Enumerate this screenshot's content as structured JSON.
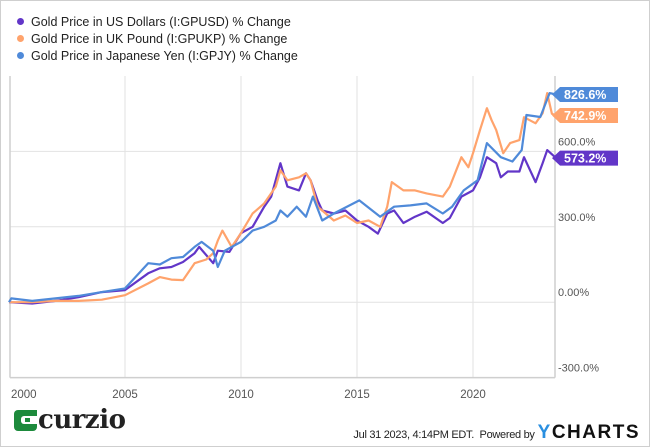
{
  "chart_data": {
    "type": "line",
    "title": "",
    "xlabel": "",
    "ylabel": "",
    "xlim": [
      2000,
      2023.6
    ],
    "ylim": [
      -300,
      900
    ],
    "grid": true,
    "legend": "top-left",
    "x_ticks": [
      "2000",
      "2005",
      "2010",
      "2015",
      "2020"
    ],
    "x_tick_values": [
      2000,
      2005,
      2010,
      2015,
      2020
    ],
    "y_ticks": [
      "-300.0%",
      "0.00%",
      "300.0%",
      "600.0%"
    ],
    "y_tick_values": [
      -300,
      0,
      300,
      600
    ],
    "series": [
      {
        "name": "Gold Price in US Dollars (I:GPUSD) % Change",
        "color": "#6236c8",
        "last_label": "573.2%",
        "last_value": 573.2,
        "points": [
          [
            2000,
            0
          ],
          [
            2001,
            -5
          ],
          [
            2002,
            5
          ],
          [
            2003,
            20
          ],
          [
            2004,
            40
          ],
          [
            2005,
            48
          ],
          [
            2006,
            115
          ],
          [
            2006.5,
            135
          ],
          [
            2007,
            140
          ],
          [
            2007.5,
            160
          ],
          [
            2008,
            195
          ],
          [
            2008.2,
            220
          ],
          [
            2008.8,
            155
          ],
          [
            2009,
            205
          ],
          [
            2009.5,
            200
          ],
          [
            2010,
            275
          ],
          [
            2010.5,
            300
          ],
          [
            2011,
            380
          ],
          [
            2011.3,
            420
          ],
          [
            2011.7,
            553
          ],
          [
            2012,
            460
          ],
          [
            2012.5,
            445
          ],
          [
            2012.8,
            513
          ],
          [
            2013,
            485
          ],
          [
            2013.3,
            405
          ],
          [
            2013.5,
            365
          ],
          [
            2014,
            353
          ],
          [
            2014.5,
            365
          ],
          [
            2015,
            325
          ],
          [
            2015.5,
            300
          ],
          [
            2015.9,
            273
          ],
          [
            2016.3,
            353
          ],
          [
            2016.6,
            365
          ],
          [
            2017,
            315
          ],
          [
            2017.5,
            340
          ],
          [
            2018,
            360
          ],
          [
            2018.7,
            315
          ],
          [
            2019,
            335
          ],
          [
            2019.5,
            420
          ],
          [
            2020,
            445
          ],
          [
            2020.3,
            497
          ],
          [
            2020.6,
            577
          ],
          [
            2021,
            553
          ],
          [
            2021.2,
            497
          ],
          [
            2021.5,
            520
          ],
          [
            2022,
            520
          ],
          [
            2022.2,
            577
          ],
          [
            2022.7,
            478
          ],
          [
            2023,
            553
          ],
          [
            2023.2,
            605
          ],
          [
            2023.58,
            573.2
          ]
        ]
      },
      {
        "name": "Gold Price in UK Pound (I:GPUKP) % Change",
        "color": "#ffa36c",
        "last_label": "742.9%",
        "last_value": 742.9,
        "points": [
          [
            2000,
            0
          ],
          [
            2001,
            0
          ],
          [
            2002,
            5
          ],
          [
            2003,
            5
          ],
          [
            2004,
            10
          ],
          [
            2005,
            28
          ],
          [
            2006,
            75
          ],
          [
            2006.5,
            100
          ],
          [
            2007,
            90
          ],
          [
            2007.5,
            88
          ],
          [
            2008,
            155
          ],
          [
            2008.5,
            170
          ],
          [
            2008.8,
            195
          ],
          [
            2009,
            245
          ],
          [
            2009.2,
            285
          ],
          [
            2009.6,
            220
          ],
          [
            2010,
            275
          ],
          [
            2010.5,
            353
          ],
          [
            2011,
            393
          ],
          [
            2011.5,
            460
          ],
          [
            2011.7,
            525
          ],
          [
            2012,
            485
          ],
          [
            2012.5,
            497
          ],
          [
            2012.8,
            513
          ],
          [
            2013,
            485
          ],
          [
            2013.3,
            380
          ],
          [
            2013.5,
            365
          ],
          [
            2014,
            325
          ],
          [
            2014.5,
            345
          ],
          [
            2015,
            315
          ],
          [
            2015.5,
            325
          ],
          [
            2016,
            300
          ],
          [
            2016.3,
            380
          ],
          [
            2016.5,
            478
          ],
          [
            2017,
            445
          ],
          [
            2017.5,
            445
          ],
          [
            2018,
            433
          ],
          [
            2018.7,
            420
          ],
          [
            2019,
            460
          ],
          [
            2019.5,
            577
          ],
          [
            2019.8,
            537
          ],
          [
            2020,
            593
          ],
          [
            2020.3,
            685
          ],
          [
            2020.6,
            772
          ],
          [
            2020.8,
            724
          ],
          [
            2021,
            685
          ],
          [
            2021.3,
            593
          ],
          [
            2021.6,
            633
          ],
          [
            2022,
            645
          ],
          [
            2022.2,
            736
          ],
          [
            2022.7,
            712
          ],
          [
            2023,
            752
          ],
          [
            2023.2,
            832
          ],
          [
            2023.4,
            750
          ],
          [
            2023.58,
            742.9
          ]
        ]
      },
      {
        "name": "Gold Price in Japanese Yen (I:GPJY) % Change",
        "color": "#4f8ad9",
        "last_label": "826.6%",
        "last_value": 826.6,
        "points": [
          [
            2000,
            0
          ],
          [
            2000.1,
            15
          ],
          [
            2001,
            5
          ],
          [
            2002,
            15
          ],
          [
            2003,
            25
          ],
          [
            2004,
            40
          ],
          [
            2005,
            55
          ],
          [
            2006,
            155
          ],
          [
            2006.5,
            150
          ],
          [
            2007,
            175
          ],
          [
            2007.5,
            180
          ],
          [
            2008,
            220
          ],
          [
            2008.3,
            240
          ],
          [
            2008.8,
            205
          ],
          [
            2009,
            140
          ],
          [
            2009.3,
            205
          ],
          [
            2010,
            240
          ],
          [
            2010.5,
            285
          ],
          [
            2011,
            300
          ],
          [
            2011.5,
            325
          ],
          [
            2011.7,
            365
          ],
          [
            2012,
            340
          ],
          [
            2012.4,
            380
          ],
          [
            2012.8,
            340
          ],
          [
            2013.1,
            420
          ],
          [
            2013.5,
            325
          ],
          [
            2014,
            353
          ],
          [
            2015.1,
            405
          ],
          [
            2016,
            340
          ],
          [
            2016.6,
            380
          ],
          [
            2017.3,
            385
          ],
          [
            2018,
            393
          ],
          [
            2018.7,
            353
          ],
          [
            2019.1,
            380
          ],
          [
            2019.6,
            445
          ],
          [
            2020.2,
            485
          ],
          [
            2020.6,
            633
          ],
          [
            2021.2,
            577
          ],
          [
            2021.7,
            560
          ],
          [
            2022.1,
            605
          ],
          [
            2022.3,
            745
          ],
          [
            2022.9,
            737
          ],
          [
            2023.3,
            832
          ],
          [
            2023.58,
            826.6
          ]
        ]
      }
    ]
  },
  "footer": {
    "timestamp": "Jul 31 2023, 4:14PM EDT.",
    "powered_by": "Powered by",
    "ycharts_y": "Y",
    "ycharts_rest": "CHARTS",
    "logo_text": "curzio"
  }
}
